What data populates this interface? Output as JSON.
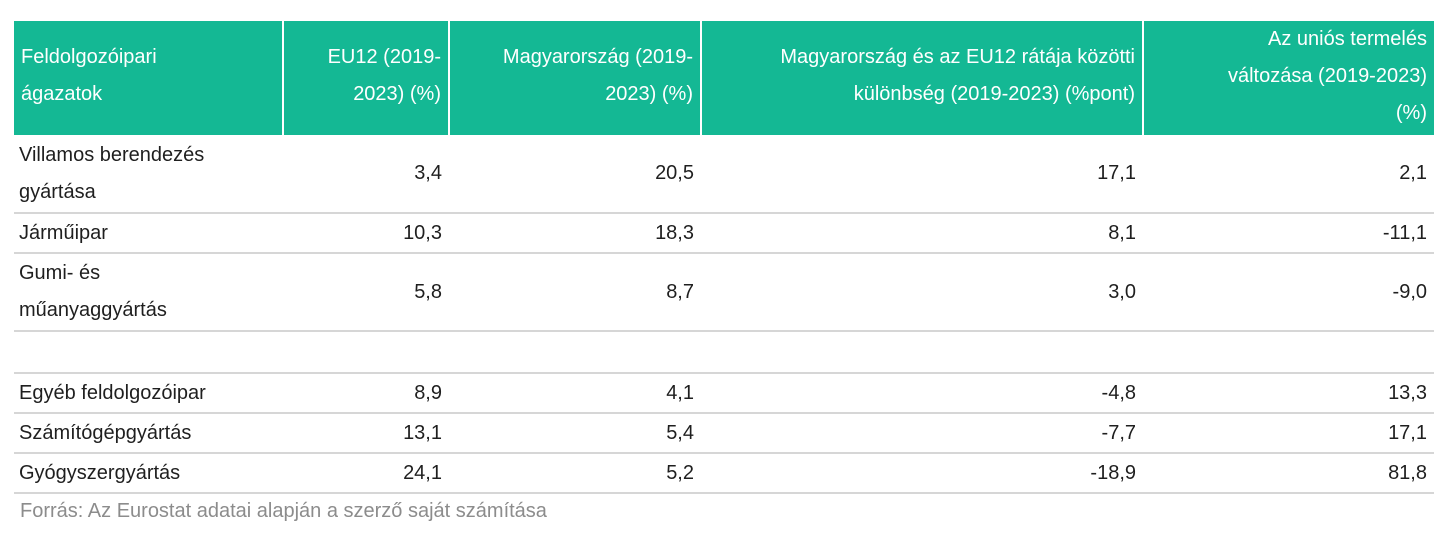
{
  "table": {
    "headers": [
      "Feldolgozóipari ágazatok",
      "EU12 (2019-2023) (%)",
      "Magyarország (2019-2023) (%)",
      "Magyarország és az EU12 rátája közötti különbség (2019-2023) (%pont)",
      "Az uniós termelés változása (2019-2023) (%)"
    ],
    "rows": [
      [
        "Villamos berendezés gyártása",
        "3,4",
        "20,5",
        "17,1",
        "2,1"
      ],
      [
        "Járműipar",
        "10,3",
        "18,3",
        "8,1",
        "-11,1"
      ],
      [
        "Gumi- és műanyaggyártás",
        "5,8",
        "8,7",
        "3,0",
        "-9,0"
      ],
      [
        "",
        "",
        "",
        "",
        ""
      ],
      [
        "Egyéb feldolgozóipar",
        "8,9",
        "4,1",
        "-4,8",
        "13,3"
      ],
      [
        "Számítógépgyártás",
        "13,1",
        "5,4",
        "-7,7",
        "17,1"
      ],
      [
        "Gyógyszergyártás",
        "24,1",
        "5,2",
        "-18,9",
        "81,8"
      ]
    ]
  },
  "source": "Forrás: Az Eurostat adatai alapján a szerző saját számítása",
  "colors": {
    "header_bg": "#14b894",
    "header_text": "#ffffff",
    "row_border": "#d6d6d6",
    "source_text": "#8c8c8c"
  }
}
